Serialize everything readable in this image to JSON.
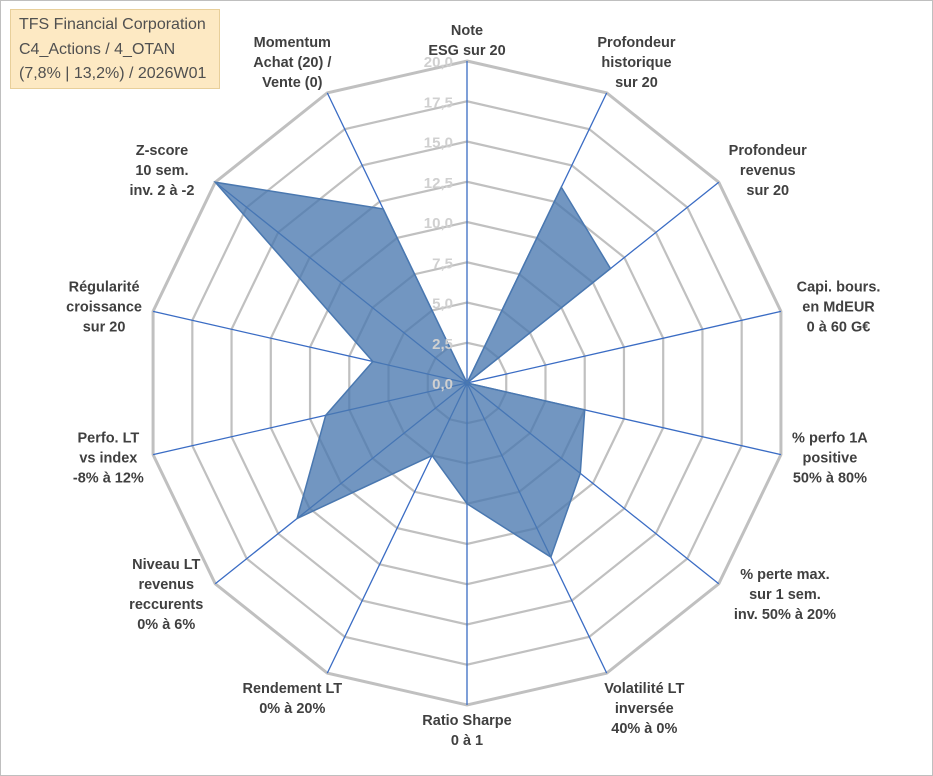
{
  "header": {
    "company": "TFS Financial Corporation",
    "category": "C4_Actions / 4_OTAN",
    "period": "(7,8% | 13,2%) / 2026W01"
  },
  "chart_data": {
    "type": "radar",
    "title": "TFS Financial Corporation",
    "range": [
      0,
      20
    ],
    "ticks": [
      "0,0",
      "2,5",
      "5,0",
      "7,5",
      "10,0",
      "12,5",
      "15,0",
      "17,5",
      "20,0"
    ],
    "tick_values": [
      0,
      2.5,
      5,
      7.5,
      10,
      12.5,
      15,
      17.5,
      20
    ],
    "grid_values": [
      2.5,
      5,
      7.5,
      10,
      12.5,
      15,
      17.5,
      20
    ],
    "axes": [
      {
        "lines": [
          "Note",
          "ESG sur 20"
        ]
      },
      {
        "lines": [
          "Profondeur",
          "historique",
          "sur 20"
        ]
      },
      {
        "lines": [
          "Profondeur",
          "revenus",
          "sur 20"
        ]
      },
      {
        "lines": [
          "Capi. bours.",
          "en MdEUR",
          "0 à 60 G€"
        ]
      },
      {
        "lines": [
          "% perfo 1A",
          "positive",
          "50% à 80%"
        ]
      },
      {
        "lines": [
          "% perte max.",
          "sur 1 sem.",
          "inv. 50% à 20%"
        ]
      },
      {
        "lines": [
          "Volatilité LT",
          "inversée",
          "40% à 0%"
        ]
      },
      {
        "lines": [
          "Ratio Sharpe",
          "0 à 1"
        ]
      },
      {
        "lines": [
          "Rendement LT",
          "0% à 20%"
        ]
      },
      {
        "lines": [
          "Niveau LT",
          "revenus",
          "reccurents",
          "0% à 6%"
        ]
      },
      {
        "lines": [
          "Perfo. LT",
          "vs index",
          "-8% à 12%"
        ]
      },
      {
        "lines": [
          "Régularité",
          "croissance",
          "sur 20"
        ]
      },
      {
        "lines": [
          "Z-score",
          "10 sem.",
          "inv. 2 à -2"
        ]
      },
      {
        "lines": [
          "Momentum",
          "Achat (20) /",
          "Vente (0)"
        ]
      }
    ],
    "series": [
      {
        "name": "TFS Financial Corporation",
        "values": [
          0,
          13.5,
          11.4,
          0,
          7.5,
          9.0,
          12.0,
          7.5,
          5.0,
          13.5,
          9.0,
          6.0,
          20.0,
          12.0
        ]
      }
    ],
    "colors": {
      "fill": "#4a78b0",
      "grid": "#c0c0c0",
      "axis": "#3a6cc4",
      "text": "#404040",
      "tick": "#d0d0d0"
    }
  }
}
